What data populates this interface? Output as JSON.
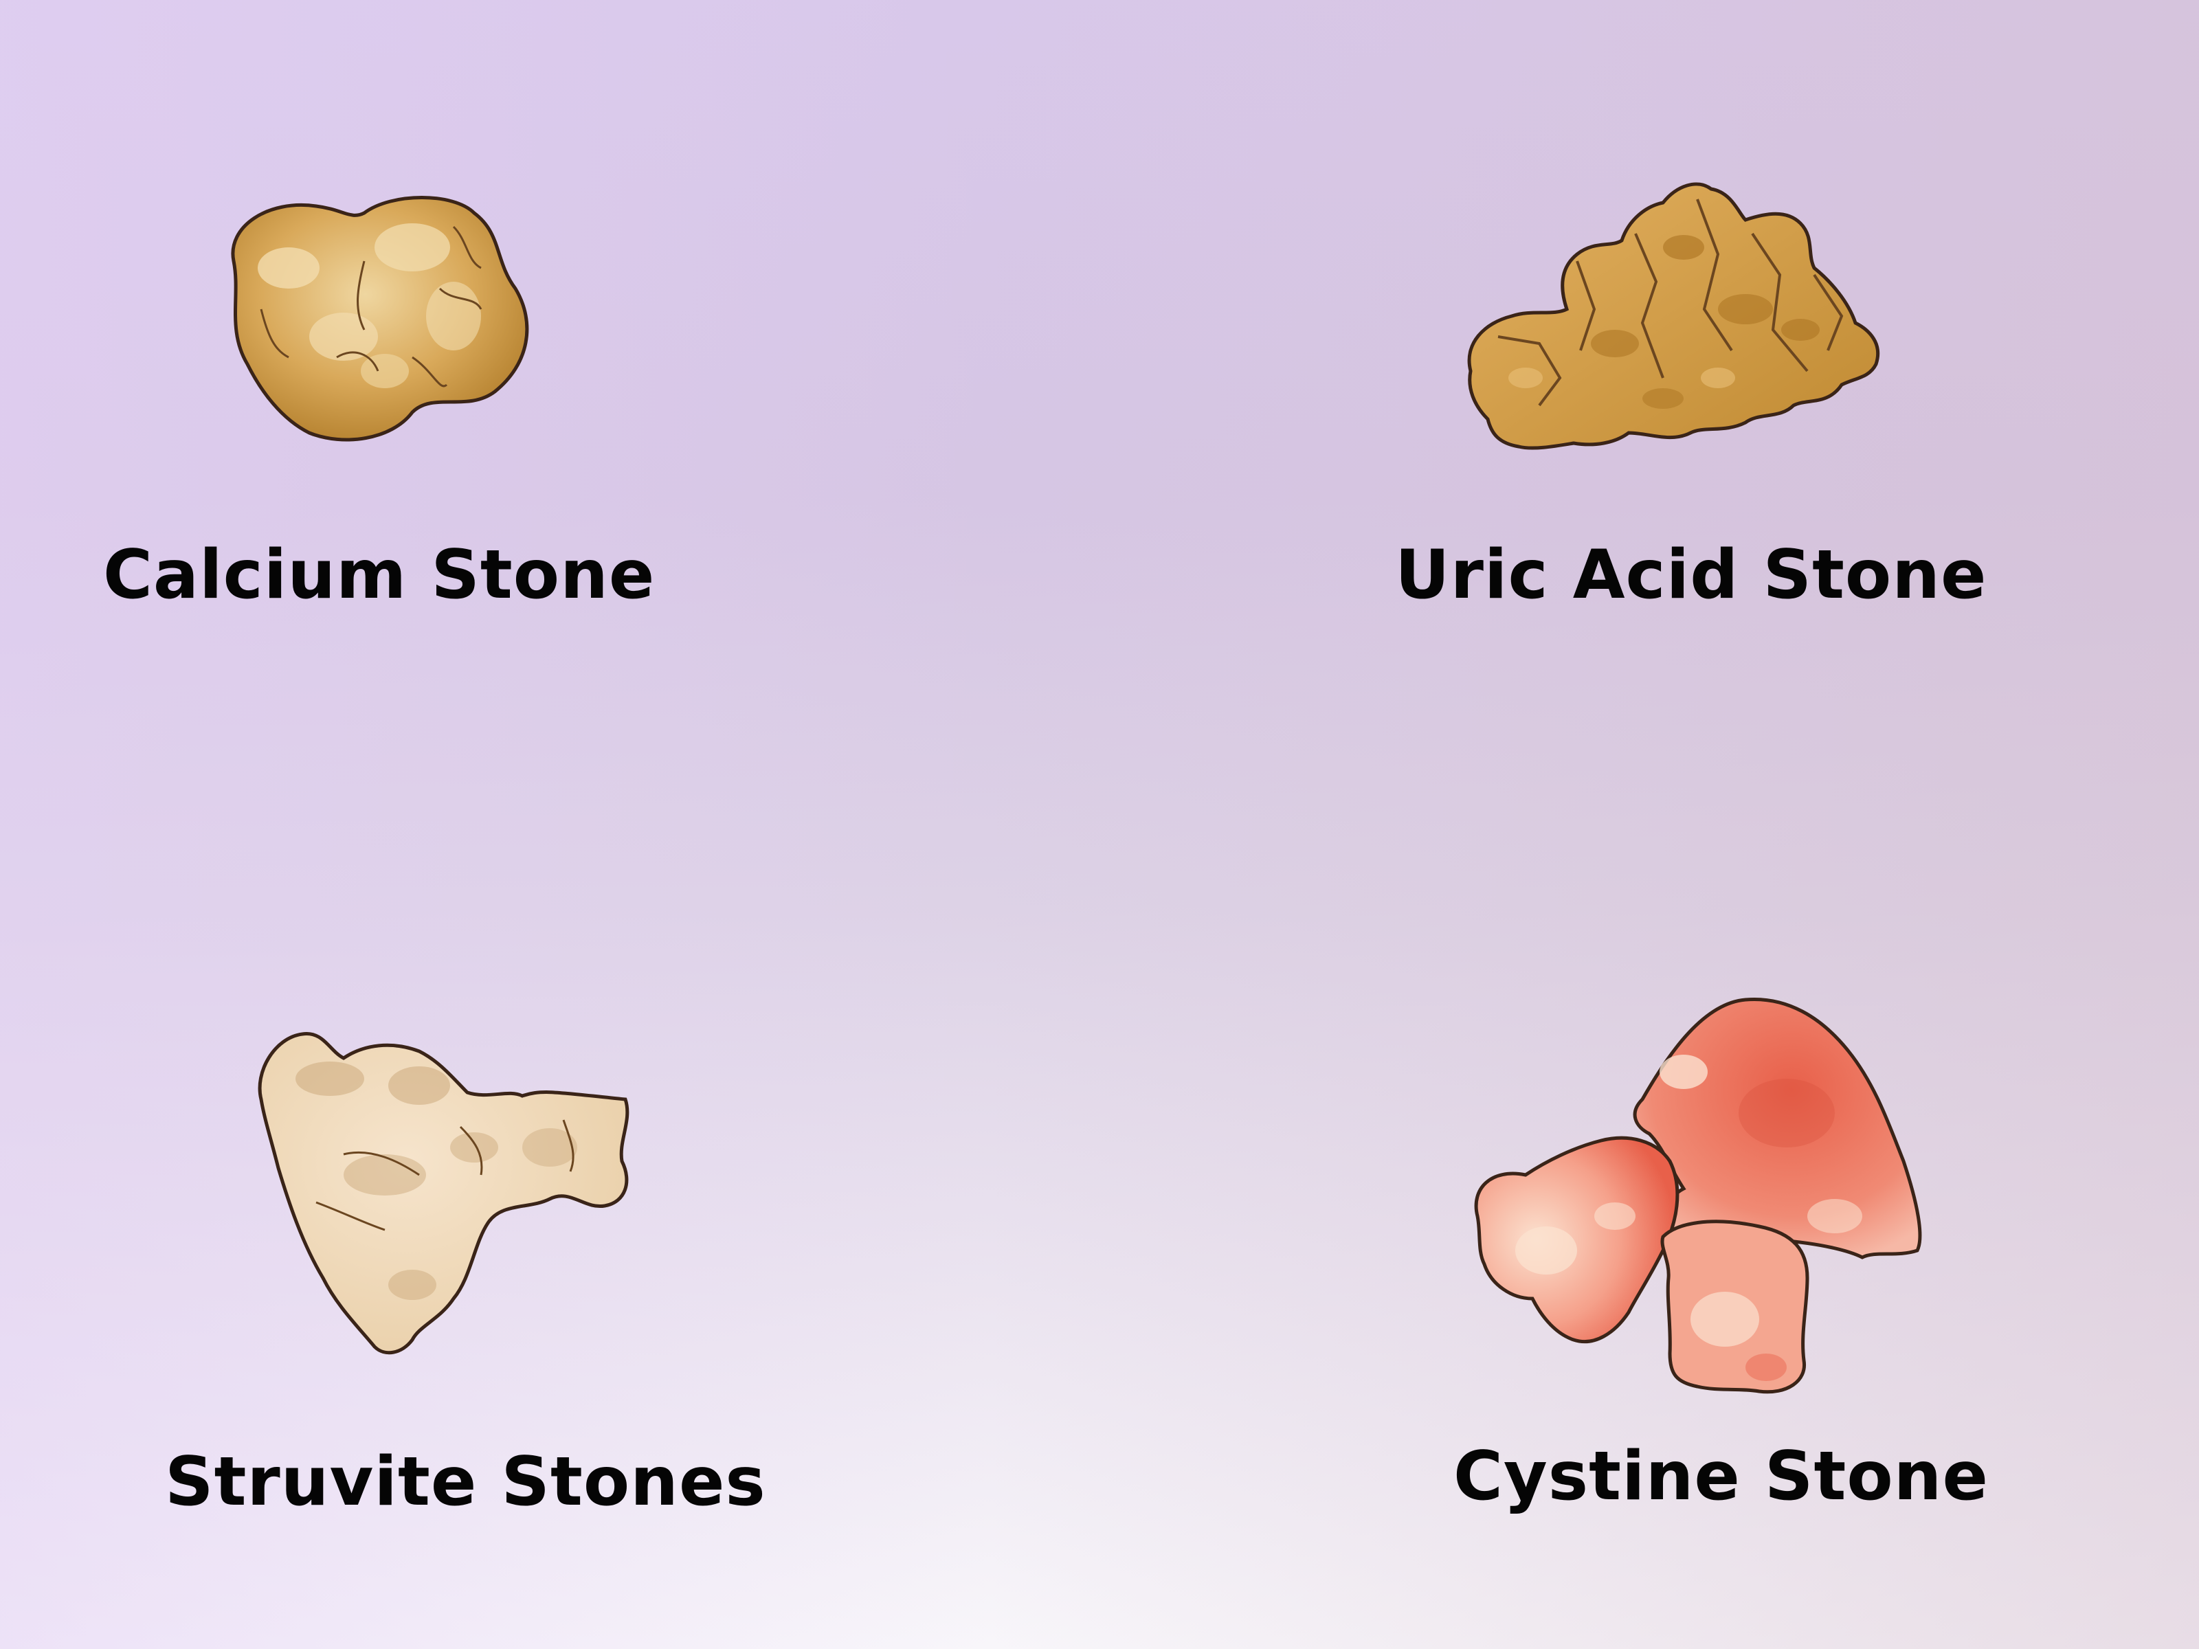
{
  "stones": [
    {
      "label": "Calcium Stone",
      "fill": "#c9953e",
      "highlight": "#ecd19a"
    },
    {
      "label": "Uric Acid Stone",
      "fill": "#d49c45",
      "highlight": "#b27a22"
    },
    {
      "label": "Struvite Stones",
      "fill": "#f1dcc0",
      "highlight": "#c9a678"
    },
    {
      "label": "Cystine Stone",
      "fill": "#f08a74",
      "highlight": "#fbe1cf"
    }
  ],
  "colors": {
    "outline": "#3a2418",
    "text": "#050505",
    "background_top": "#d8c8ea",
    "background_bottom": "#f8f6fa"
  }
}
